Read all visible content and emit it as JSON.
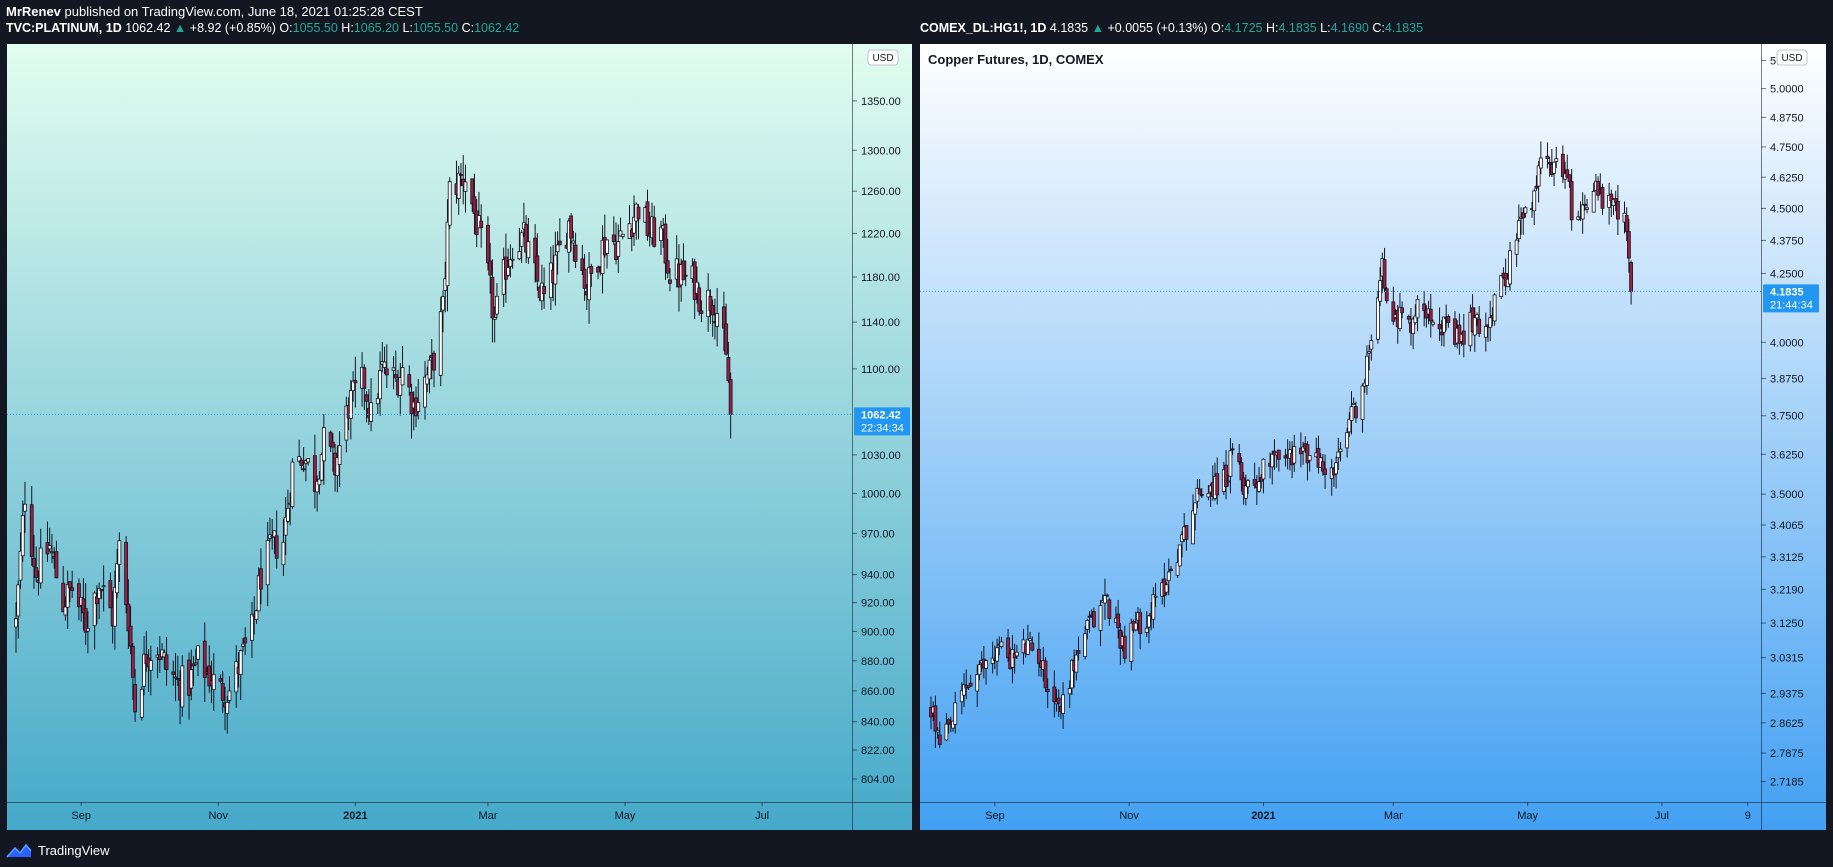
{
  "header": {
    "author": "MrRenev",
    "published_text": "published on TradingView.com, June 18, 2021 01:25:28 CEST"
  },
  "footer": {
    "brand": "TradingView"
  },
  "panel1": {
    "symbol": "TVC:PLATINUM, 1D",
    "last": "1062.42",
    "change": "+8.92 (+0.85%)",
    "o_label": "O:",
    "o": "1055.50",
    "h_label": "H:",
    "h": "1065.20",
    "l_label": "L:",
    "l": "1055.50",
    "c_label": "C:",
    "c": "1062.42",
    "currency": "USD",
    "price_badge": "1062.42",
    "countdown": "22:34:34"
  },
  "panel2": {
    "symbol": "COMEX_DL:HG1!, 1D",
    "last": "4.1835",
    "change": "+0.0055 (+0.13%)",
    "o_label": "O:",
    "o": "4.1725",
    "h_label": "H:",
    "h": "4.1835",
    "l_label": "L:",
    "l": "4.1690",
    "c_label": "C:",
    "c": "4.1835",
    "title": "Copper Futures, 1D, COMEX",
    "currency": "USD",
    "price_badge": "4.1835",
    "countdown": "21:44:34"
  },
  "colors": {
    "background": "#131722",
    "up": "#26a69a",
    "badge": "#2196f3",
    "candle_up": "#ffffff",
    "candle_down": "#9c1f3f",
    "outline": "#131722"
  },
  "chart_data": [
    {
      "type": "candlestick",
      "scale": "log",
      "y_ticks": [
        "1350.00",
        "1300.00",
        "1260.00",
        "1220.00",
        "1180.00",
        "1140.00",
        "1100.00",
        "1030.00",
        "1000.00",
        "970.00",
        "940.00",
        "920.00",
        "900.00",
        "880.00",
        "860.00",
        "840.00",
        "822.00",
        "804.00"
      ],
      "x_ticks": [
        "Sep",
        "Nov",
        "2021",
        "Mar",
        "May",
        "Jul"
      ],
      "ylim": [
        790,
        1410
      ],
      "xlim": [
        "2020-07-30",
        "2021-08-10"
      ],
      "last_price": 1062.42,
      "series": [
        {
          "date": "2020-08-03",
          "close": 905
        },
        {
          "date": "2020-08-07",
          "close": 1000
        },
        {
          "date": "2020-08-12",
          "close": 940
        },
        {
          "date": "2020-08-18",
          "close": 960
        },
        {
          "date": "2020-08-24",
          "close": 920
        },
        {
          "date": "2020-08-28",
          "close": 930
        },
        {
          "date": "2020-09-03",
          "close": 905
        },
        {
          "date": "2020-09-09",
          "close": 935
        },
        {
          "date": "2020-09-15",
          "close": 910
        },
        {
          "date": "2020-09-18",
          "close": 960
        },
        {
          "date": "2020-09-22",
          "close": 910
        },
        {
          "date": "2020-09-25",
          "close": 850
        },
        {
          "date": "2020-09-30",
          "close": 885
        },
        {
          "date": "2020-10-05",
          "close": 890
        },
        {
          "date": "2020-10-09",
          "close": 875
        },
        {
          "date": "2020-10-14",
          "close": 865
        },
        {
          "date": "2020-10-19",
          "close": 865
        },
        {
          "date": "2020-10-23",
          "close": 880
        },
        {
          "date": "2020-10-28",
          "close": 870
        },
        {
          "date": "2020-11-02",
          "close": 860
        },
        {
          "date": "2020-11-06",
          "close": 860
        },
        {
          "date": "2020-11-11",
          "close": 880
        },
        {
          "date": "2020-11-16",
          "close": 900
        },
        {
          "date": "2020-11-20",
          "close": 940
        },
        {
          "date": "2020-11-25",
          "close": 960
        },
        {
          "date": "2020-11-30",
          "close": 965
        },
        {
          "date": "2020-12-04",
          "close": 1020
        },
        {
          "date": "2020-12-09",
          "close": 1030
        },
        {
          "date": "2020-12-14",
          "close": 1010
        },
        {
          "date": "2020-12-18",
          "close": 1040
        },
        {
          "date": "2020-12-23",
          "close": 1020
        },
        {
          "date": "2020-12-29",
          "close": 1070
        },
        {
          "date": "2021-01-05",
          "close": 1090
        },
        {
          "date": "2021-01-08",
          "close": 1060
        },
        {
          "date": "2021-01-13",
          "close": 1100
        },
        {
          "date": "2021-01-19",
          "close": 1090
        },
        {
          "date": "2021-01-22",
          "close": 1100
        },
        {
          "date": "2021-01-27",
          "close": 1070
        },
        {
          "date": "2021-02-01",
          "close": 1090
        },
        {
          "date": "2021-02-04",
          "close": 1100
        },
        {
          "date": "2021-02-09",
          "close": 1150
        },
        {
          "date": "2021-02-12",
          "close": 1260
        },
        {
          "date": "2021-02-16",
          "close": 1270
        },
        {
          "date": "2021-02-19",
          "close": 1275
        },
        {
          "date": "2021-02-24",
          "close": 1230
        },
        {
          "date": "2021-03-01",
          "close": 1180
        },
        {
          "date": "2021-03-04",
          "close": 1140
        },
        {
          "date": "2021-03-09",
          "close": 1190
        },
        {
          "date": "2021-03-12",
          "close": 1210
        },
        {
          "date": "2021-03-17",
          "close": 1215
        },
        {
          "date": "2021-03-22",
          "close": 1180
        },
        {
          "date": "2021-03-26",
          "close": 1160
        },
        {
          "date": "2021-03-31",
          "close": 1190
        },
        {
          "date": "2021-04-06",
          "close": 1230
        },
        {
          "date": "2021-04-09",
          "close": 1210
        },
        {
          "date": "2021-04-14",
          "close": 1170
        },
        {
          "date": "2021-04-19",
          "close": 1200
        },
        {
          "date": "2021-04-23",
          "close": 1215
        },
        {
          "date": "2021-04-28",
          "close": 1210
        },
        {
          "date": "2021-05-03",
          "close": 1230
        },
        {
          "date": "2021-05-07",
          "close": 1245
        },
        {
          "date": "2021-05-12",
          "close": 1220
        },
        {
          "date": "2021-05-17",
          "close": 1220
        },
        {
          "date": "2021-05-21",
          "close": 1185
        },
        {
          "date": "2021-05-26",
          "close": 1180
        },
        {
          "date": "2021-06-01",
          "close": 1175
        },
        {
          "date": "2021-06-04",
          "close": 1160
        },
        {
          "date": "2021-06-09",
          "close": 1160
        },
        {
          "date": "2021-06-11",
          "close": 1150
        },
        {
          "date": "2021-06-14",
          "close": 1120
        },
        {
          "date": "2021-06-16",
          "close": 1090
        },
        {
          "date": "2021-06-17",
          "close": 1062.42
        }
      ]
    },
    {
      "type": "candlestick",
      "scale": "log",
      "title": "Copper Futures, 1D, COMEX",
      "y_ticks": [
        "5.1250",
        "5.0000",
        "4.8750",
        "4.7500",
        "4.6250",
        "4.5000",
        "4.3750",
        "4.2500",
        "4.0000",
        "3.8750",
        "3.7500",
        "3.6250",
        "3.5000",
        "3.4065",
        "3.3125",
        "3.2190",
        "3.1250",
        "3.0315",
        "2.9375",
        "2.8625",
        "2.7875",
        "2.7185"
      ],
      "x_ticks": [
        "Sep",
        "Nov",
        "2021",
        "Mar",
        "May",
        "Jul",
        "9"
      ],
      "ylim": [
        2.67,
        5.2
      ],
      "xlim": [
        "2020-07-29",
        "2021-08-15"
      ],
      "last_price": 4.1835,
      "series": [
        {
          "date": "2020-08-03",
          "close": 2.9
        },
        {
          "date": "2020-08-07",
          "close": 2.8
        },
        {
          "date": "2020-08-12",
          "close": 2.85
        },
        {
          "date": "2020-08-18",
          "close": 2.95
        },
        {
          "date": "2020-08-24",
          "close": 2.98
        },
        {
          "date": "2020-08-28",
          "close": 3.02
        },
        {
          "date": "2020-09-03",
          "close": 3.06
        },
        {
          "date": "2020-09-09",
          "close": 3.03
        },
        {
          "date": "2020-09-15",
          "close": 3.06
        },
        {
          "date": "2020-09-21",
          "close": 3.04
        },
        {
          "date": "2020-09-25",
          "close": 2.96
        },
        {
          "date": "2020-10-01",
          "close": 2.9
        },
        {
          "date": "2020-10-06",
          "close": 3.0
        },
        {
          "date": "2020-10-12",
          "close": 3.1
        },
        {
          "date": "2020-10-16",
          "close": 3.13
        },
        {
          "date": "2020-10-21",
          "close": 3.2
        },
        {
          "date": "2020-10-26",
          "close": 3.12
        },
        {
          "date": "2020-10-30",
          "close": 3.06
        },
        {
          "date": "2020-11-04",
          "close": 3.12
        },
        {
          "date": "2020-11-10",
          "close": 3.15
        },
        {
          "date": "2020-11-16",
          "close": 3.22
        },
        {
          "date": "2020-11-20",
          "close": 3.28
        },
        {
          "date": "2020-11-25",
          "close": 3.36
        },
        {
          "date": "2020-11-30",
          "close": 3.46
        },
        {
          "date": "2020-12-04",
          "close": 3.52
        },
        {
          "date": "2020-12-10",
          "close": 3.53
        },
        {
          "date": "2020-12-15",
          "close": 3.55
        },
        {
          "date": "2020-12-18",
          "close": 3.62
        },
        {
          "date": "2020-12-23",
          "close": 3.53
        },
        {
          "date": "2020-12-30",
          "close": 3.55
        },
        {
          "date": "2021-01-06",
          "close": 3.65
        },
        {
          "date": "2021-01-11",
          "close": 3.6
        },
        {
          "date": "2021-01-15",
          "close": 3.64
        },
        {
          "date": "2021-01-21",
          "close": 3.62
        },
        {
          "date": "2021-01-26",
          "close": 3.6
        },
        {
          "date": "2021-02-01",
          "close": 3.56
        },
        {
          "date": "2021-02-04",
          "close": 3.6
        },
        {
          "date": "2021-02-10",
          "close": 3.75
        },
        {
          "date": "2021-02-16",
          "close": 3.85
        },
        {
          "date": "2021-02-19",
          "close": 4.05
        },
        {
          "date": "2021-02-24",
          "close": 4.3
        },
        {
          "date": "2021-02-26",
          "close": 4.12
        },
        {
          "date": "2021-03-03",
          "close": 4.1
        },
        {
          "date": "2021-03-08",
          "close": 4.06
        },
        {
          "date": "2021-03-12",
          "close": 4.12
        },
        {
          "date": "2021-03-17",
          "close": 4.13
        },
        {
          "date": "2021-03-22",
          "close": 4.08
        },
        {
          "date": "2021-03-26",
          "close": 4.03
        },
        {
          "date": "2021-03-31",
          "close": 4.0
        },
        {
          "date": "2021-04-06",
          "close": 4.08
        },
        {
          "date": "2021-04-09",
          "close": 4.05
        },
        {
          "date": "2021-04-14",
          "close": 4.1
        },
        {
          "date": "2021-04-19",
          "close": 4.2
        },
        {
          "date": "2021-04-23",
          "close": 4.3
        },
        {
          "date": "2021-04-28",
          "close": 4.45
        },
        {
          "date": "2021-05-03",
          "close": 4.5
        },
        {
          "date": "2021-05-07",
          "close": 4.7
        },
        {
          "date": "2021-05-10",
          "close": 4.75
        },
        {
          "date": "2021-05-13",
          "close": 4.65
        },
        {
          "date": "2021-05-18",
          "close": 4.68
        },
        {
          "date": "2021-05-21",
          "close": 4.5
        },
        {
          "date": "2021-05-26",
          "close": 4.5
        },
        {
          "date": "2021-06-01",
          "close": 4.6
        },
        {
          "date": "2021-06-04",
          "close": 4.52
        },
        {
          "date": "2021-06-09",
          "close": 4.5
        },
        {
          "date": "2021-06-11",
          "close": 4.48
        },
        {
          "date": "2021-06-14",
          "close": 4.45
        },
        {
          "date": "2021-06-16",
          "close": 4.3
        },
        {
          "date": "2021-06-17",
          "close": 4.1835
        }
      ]
    }
  ]
}
